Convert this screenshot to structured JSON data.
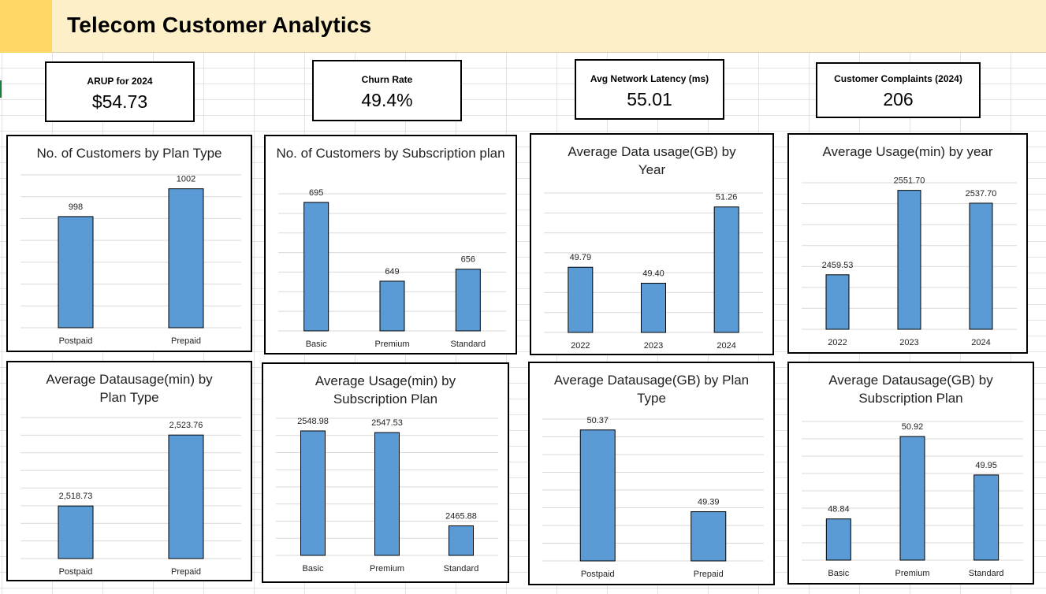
{
  "header": {
    "title": "Telecom Customer Analytics"
  },
  "kpis": [
    {
      "label": "ARUP for 2024",
      "value": "$54.73"
    },
    {
      "label": "Churn Rate",
      "value": "49.4%"
    },
    {
      "label": "Avg Network Latency (ms)",
      "value": "55.01"
    },
    {
      "label": "Customer Complaints (2024)",
      "value": "206"
    }
  ],
  "colors": {
    "bar": "#5b9bd5",
    "bar_stroke": "#000000",
    "grid": "#d9d9d9",
    "header_bg": "#fdf0c8",
    "header_swatch": "#fed766"
  },
  "chart_data": [
    {
      "type": "bar",
      "title": "No. of Customers by Plan Type",
      "categories": [
        "Postpaid",
        "Prepaid"
      ],
      "values": [
        998,
        1002
      ],
      "labels": [
        "998",
        "1002"
      ],
      "ylim": [
        982,
        1004
      ],
      "grid": true
    },
    {
      "type": "bar",
      "title": "No. of Customers by Subscription plan",
      "categories": [
        "Basic",
        "Premium",
        "Standard"
      ],
      "values": [
        695,
        649,
        656
      ],
      "labels": [
        "695",
        "649",
        "656"
      ],
      "ylim": [
        620,
        700
      ],
      "grid": true
    },
    {
      "type": "bar",
      "title": "Average Data usage(GB) by Year",
      "categories": [
        "2022",
        "2023",
        "2024"
      ],
      "values": [
        49.79,
        49.4,
        51.26
      ],
      "labels": [
        "49.79",
        "49.40",
        "51.26"
      ],
      "ylim": [
        48.2,
        51.6
      ],
      "grid": true
    },
    {
      "type": "bar",
      "title": "Average Usage(min) by year",
      "categories": [
        "2022",
        "2023",
        "2024"
      ],
      "values": [
        2459.53,
        2551.7,
        2537.7
      ],
      "labels": [
        "2459.53",
        "2551.70",
        "2537.70"
      ],
      "ylim": [
        2400,
        2560
      ],
      "grid": true
    },
    {
      "type": "bar",
      "title": "Average Datausage(min) by Plan Type",
      "categories": [
        "Postpaid",
        "Prepaid"
      ],
      "values": [
        2518.73,
        2523.76
      ],
      "labels": [
        "2,518.73",
        "2,523.76"
      ],
      "ylim": [
        2515,
        2525
      ],
      "grid": true
    },
    {
      "type": "bar",
      "title": "Average Usage(min) by Subscription Plan",
      "categories": [
        "Basic",
        "Premium",
        "Standard"
      ],
      "values": [
        2548.98,
        2547.53,
        2465.88
      ],
      "labels": [
        "2548.98",
        "2547.53",
        "2465.88"
      ],
      "ylim": [
        2440,
        2560
      ],
      "grid": true
    },
    {
      "type": "bar",
      "title": "Average Datausage(GB) by Plan Type",
      "categories": [
        "Postpaid",
        "Prepaid"
      ],
      "values": [
        50.37,
        49.39
      ],
      "labels": [
        "50.37",
        "49.39"
      ],
      "ylim": [
        48.8,
        50.5
      ],
      "grid": true
    },
    {
      "type": "bar",
      "title": "Average Datausage(GB) by Subscription Plan",
      "categories": [
        "Basic",
        "Premium",
        "Standard"
      ],
      "values": [
        48.84,
        50.92,
        49.95
      ],
      "labels": [
        "48.84",
        "50.92",
        "49.95"
      ],
      "ylim": [
        47.8,
        51.3
      ],
      "grid": true
    }
  ]
}
